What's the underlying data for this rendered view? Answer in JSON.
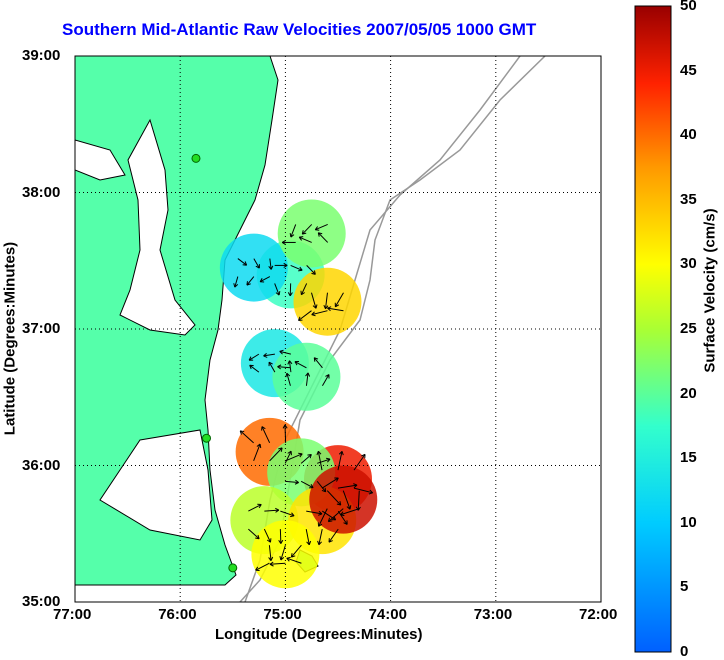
{
  "chart_data": {
    "type": "map",
    "title": "Southern Mid-Atlantic Raw Velocities 2007/05/05 1000 GMT",
    "xlabel": "Longitude (Degrees:Minutes)",
    "ylabel": "Latitude (Degrees:Minutes)",
    "colorbar_label": "Surface Velocity (cm/s)",
    "x_ticks": [
      "77:00",
      "76:00",
      "75:00",
      "74:00",
      "73:00",
      "72:00"
    ],
    "y_ticks": [
      "39:00",
      "38:00",
      "37:00",
      "36:00",
      "35:00"
    ],
    "colorbar_ticks": [
      "50",
      "45",
      "40",
      "35",
      "30",
      "25",
      "20",
      "15",
      "10",
      "5",
      "0"
    ],
    "colorbar_range": [
      0,
      50
    ],
    "lon_range": [
      -77,
      -72
    ],
    "lat_range": [
      35,
      39
    ],
    "grid": true,
    "colors": {
      "land": "#55ffaa",
      "title": "#0000ff",
      "coast": "#000000",
      "bathymetry": "#999999"
    },
    "stations": [
      {
        "lon": -75.85,
        "lat": 38.25
      },
      {
        "lon": -75.75,
        "lat": 36.2
      },
      {
        "lon": -75.5,
        "lat": 35.25
      }
    ],
    "velocity_patches": [
      {
        "lon": -74.95,
        "lat": 37.4,
        "speed": 18
      },
      {
        "lon": -75.3,
        "lat": 37.45,
        "speed": 12
      },
      {
        "lon": -74.6,
        "lat": 37.2,
        "speed": 33
      },
      {
        "lon": -74.75,
        "lat": 37.7,
        "speed": 22
      },
      {
        "lon": -75.1,
        "lat": 36.75,
        "speed": 14
      },
      {
        "lon": -74.8,
        "lat": 36.65,
        "speed": 20
      },
      {
        "lon": -75.15,
        "lat": 36.1,
        "speed": 40
      },
      {
        "lon": -74.5,
        "lat": 35.9,
        "speed": 45
      },
      {
        "lon": -74.85,
        "lat": 35.95,
        "speed": 22
      },
      {
        "lon": -75.2,
        "lat": 35.6,
        "speed": 26
      },
      {
        "lon": -74.65,
        "lat": 35.6,
        "speed": 32
      },
      {
        "lon": -74.45,
        "lat": 35.75,
        "speed": 47
      },
      {
        "lon": -75.0,
        "lat": 35.35,
        "speed": 30
      }
    ]
  }
}
